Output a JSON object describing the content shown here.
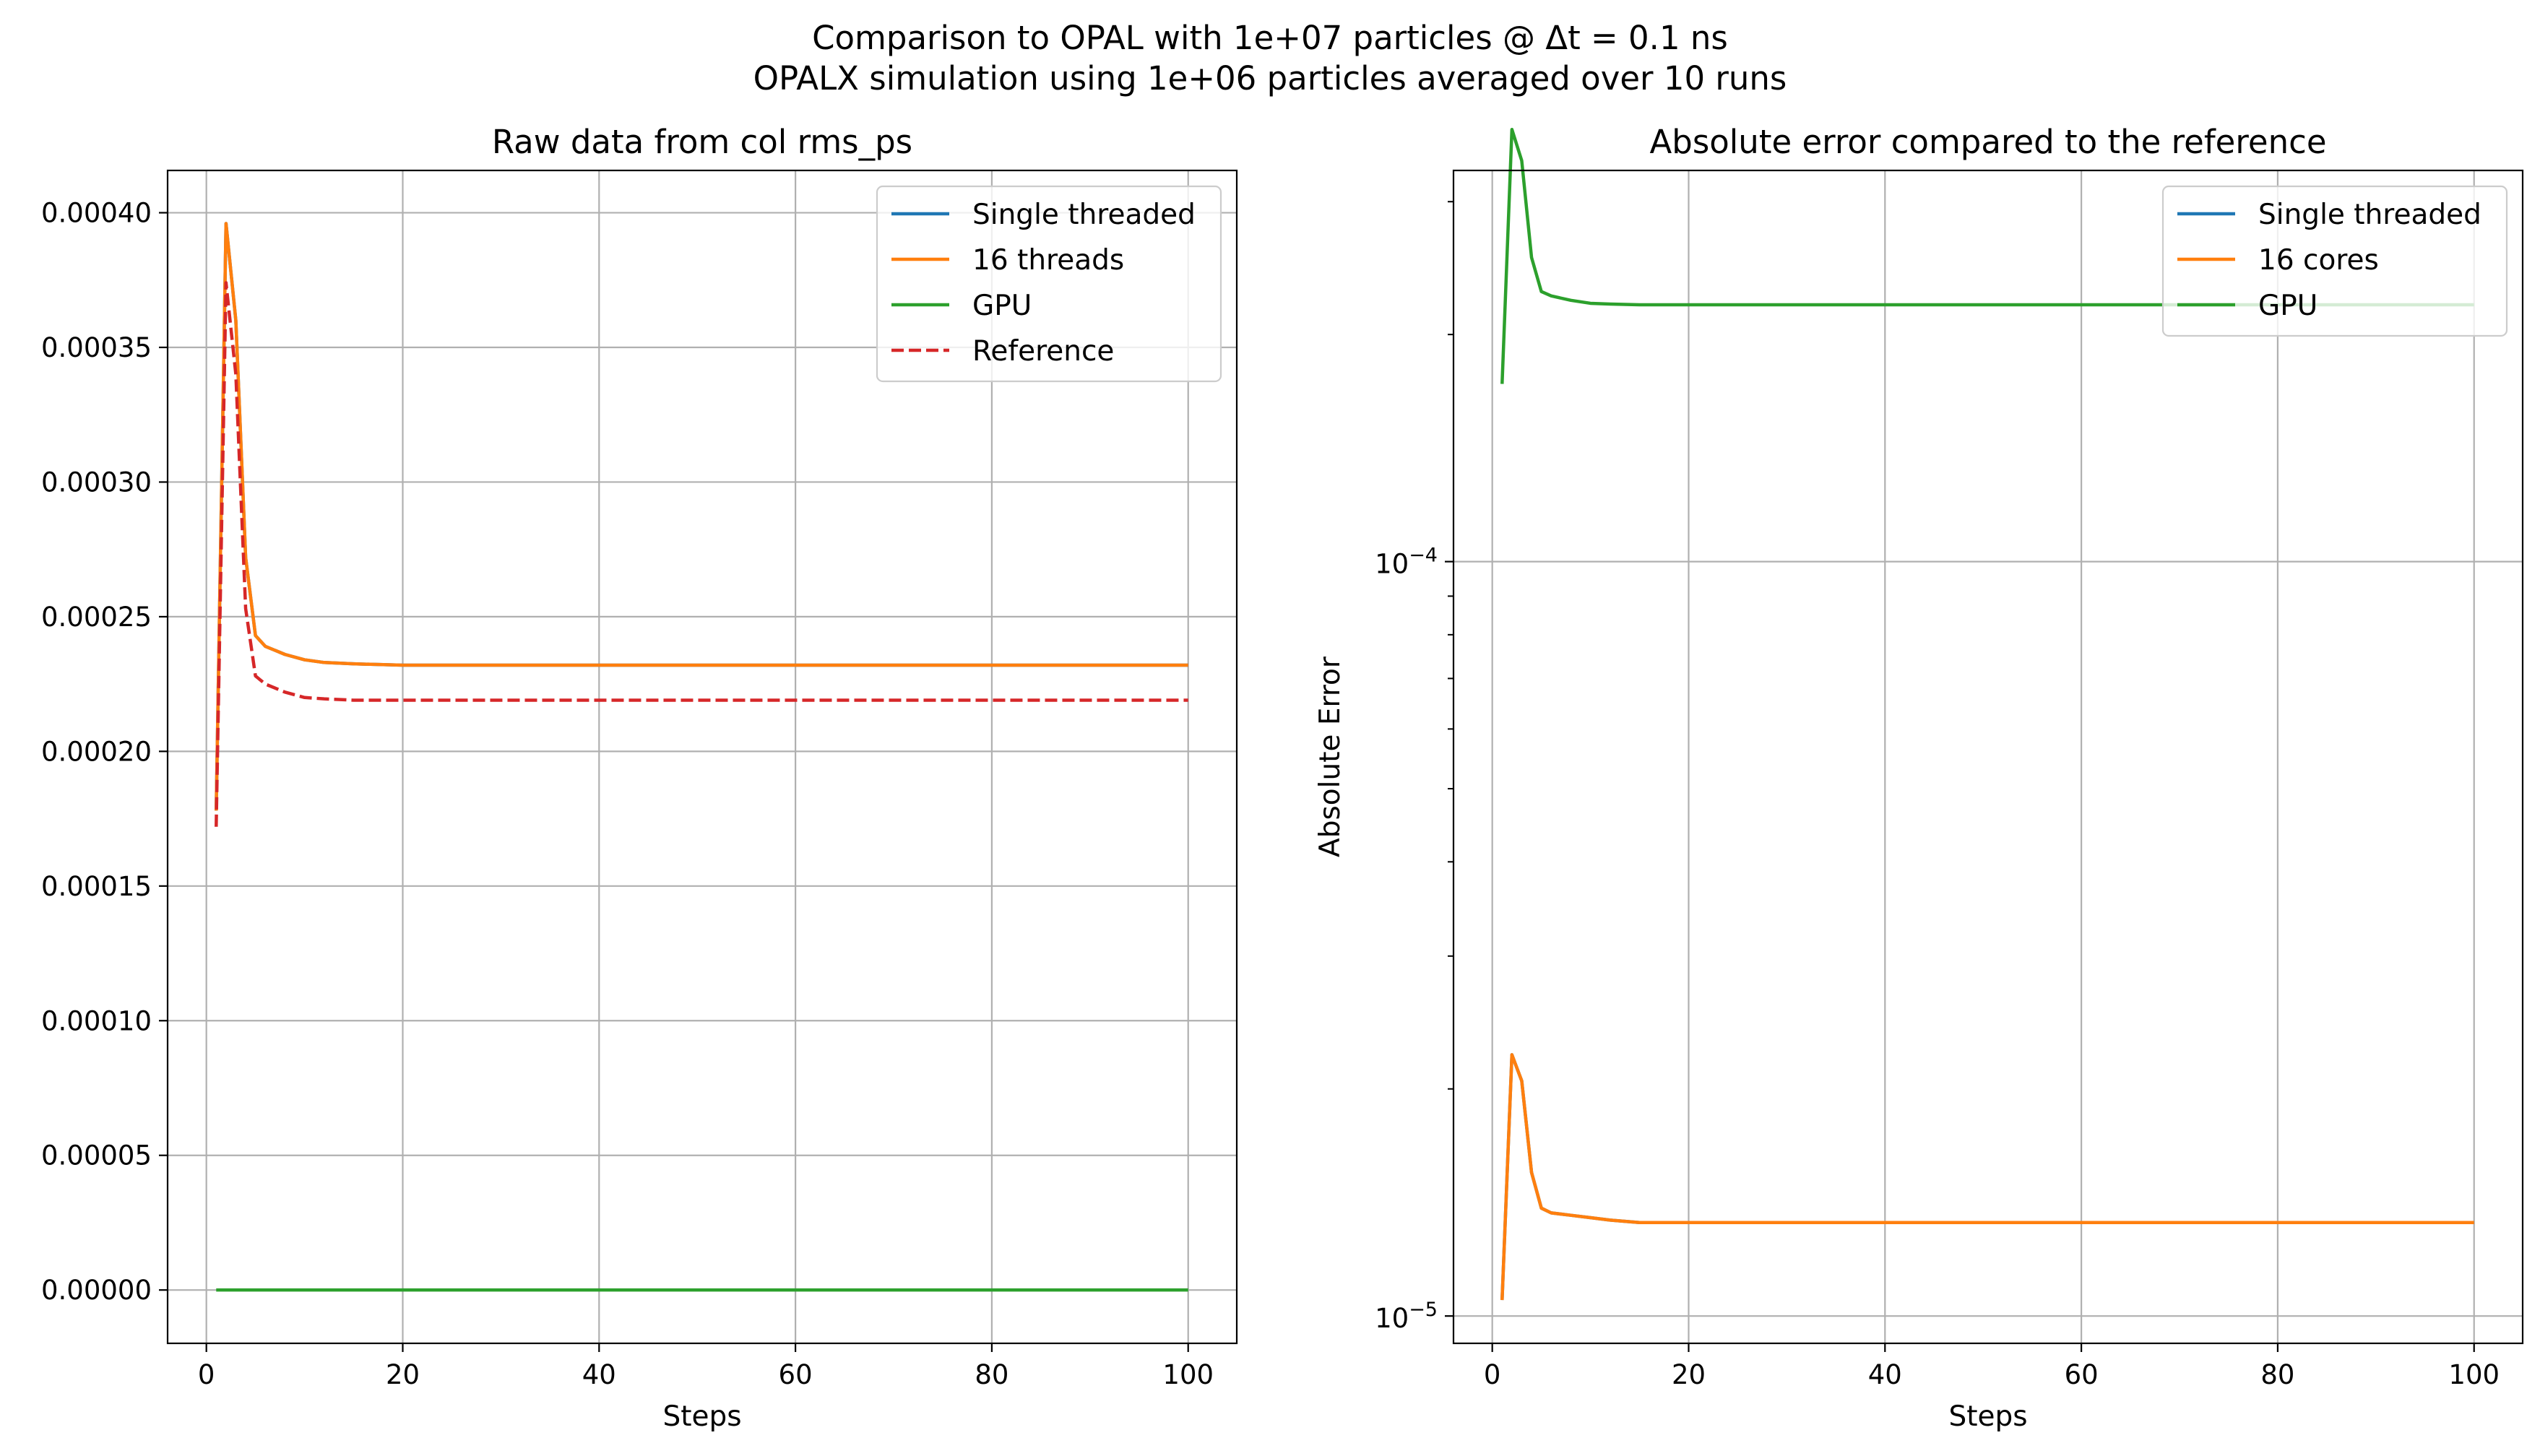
{
  "figure": {
    "suptitle_line1": "Comparison to OPAL with 1e+07 particles @ Δt = 0.1 ns",
    "suptitle_line2": "OPALX simulation using 1e+06 particles averaged over 10 runs"
  },
  "colors": {
    "single_threaded": "#1f77b4",
    "multi": "#ff7f0e",
    "gpu": "#2ca02c",
    "reference": "#d62728",
    "grid": "#b0b0b0"
  },
  "chart_data": [
    {
      "type": "line",
      "title": "Raw data from col rms_ps",
      "xlabel": "Steps",
      "ylabel": "",
      "xlim": [
        -3.95,
        104.95
      ],
      "ylim": [
        -1.98e-05,
        0.0004157
      ],
      "xticks": [
        0,
        20,
        40,
        60,
        80,
        100
      ],
      "yticks": [
        0,
        5e-05,
        0.0001,
        0.00015,
        0.0002,
        0.00025,
        0.0003,
        0.00035,
        0.0004
      ],
      "ytick_labels": [
        "0.00000",
        "0.00005",
        "0.00010",
        "0.00015",
        "0.00020",
        "0.00025",
        "0.00030",
        "0.00035",
        "0.00040"
      ],
      "grid": true,
      "legend_position": "upper right",
      "x": [
        1,
        2,
        3,
        4,
        5,
        6,
        8,
        10,
        12,
        15,
        20,
        30,
        50,
        100
      ],
      "series": [
        {
          "name": "Single threaded",
          "color": "#1f77b4",
          "dashed": false,
          "values": [
            0.000178,
            0.000396,
            0.00036,
            0.000272,
            0.000243,
            0.000239,
            0.000236,
            0.000234,
            0.000233,
            0.0002325,
            0.000232,
            0.000232,
            0.000232,
            0.000232
          ]
        },
        {
          "name": "16 threads",
          "color": "#ff7f0e",
          "dashed": false,
          "values": [
            0.000178,
            0.000396,
            0.00036,
            0.000272,
            0.000243,
            0.000239,
            0.000236,
            0.000234,
            0.000233,
            0.0002325,
            0.000232,
            0.000232,
            0.000232,
            0.000232
          ]
        },
        {
          "name": "GPU",
          "color": "#2ca02c",
          "dashed": false,
          "values": [
            0,
            0,
            0,
            0,
            0,
            0,
            0,
            0,
            0,
            0,
            0,
            0,
            0,
            0
          ]
        },
        {
          "name": "Reference",
          "color": "#d62728",
          "dashed": true,
          "values": [
            0.000172,
            0.000374,
            0.00034,
            0.000253,
            0.000228,
            0.000225,
            0.000222,
            0.00022,
            0.0002195,
            0.000219,
            0.000219,
            0.000219,
            0.000219,
            0.000219
          ]
        }
      ]
    },
    {
      "type": "line",
      "title": "Absolute error compared to the reference",
      "xlabel": "Steps",
      "ylabel": "Absolute Error",
      "yscale": "log",
      "xlim": [
        -3.95,
        104.95
      ],
      "ylim": [
        9.2e-06,
        0.00033
      ],
      "xticks": [
        0,
        20,
        40,
        60,
        80,
        100
      ],
      "yticks": [
        1e-05,
        0.0001
      ],
      "ytick_labels": [
        {
          "base": "10",
          "exp": "−5"
        },
        {
          "base": "10",
          "exp": "−4"
        }
      ],
      "grid": true,
      "legend_position": "upper right",
      "x": [
        1,
        2,
        3,
        4,
        5,
        6,
        8,
        10,
        12,
        15,
        20,
        30,
        50,
        100
      ],
      "series": [
        {
          "name": "Single threaded",
          "color": "#1f77b4",
          "dashed": false,
          "values": [
            1.05e-05,
            2.22e-05,
            2.05e-05,
            1.55e-05,
            1.39e-05,
            1.37e-05,
            1.36e-05,
            1.35e-05,
            1.34e-05,
            1.33e-05,
            1.33e-05,
            1.33e-05,
            1.33e-05,
            1.33e-05
          ]
        },
        {
          "name": "16 cores",
          "color": "#ff7f0e",
          "dashed": false,
          "values": [
            1.05e-05,
            2.22e-05,
            2.05e-05,
            1.55e-05,
            1.39e-05,
            1.37e-05,
            1.36e-05,
            1.35e-05,
            1.34e-05,
            1.33e-05,
            1.33e-05,
            1.33e-05,
            1.33e-05,
            1.33e-05
          ]
        },
        {
          "name": "GPU",
          "color": "#2ca02c",
          "dashed": false,
          "values": [
            0.000172,
            0.000374,
            0.00034,
            0.000253,
            0.000228,
            0.000225,
            0.000222,
            0.00022,
            0.0002195,
            0.000219,
            0.000219,
            0.000219,
            0.000219,
            0.000219
          ]
        }
      ]
    }
  ]
}
